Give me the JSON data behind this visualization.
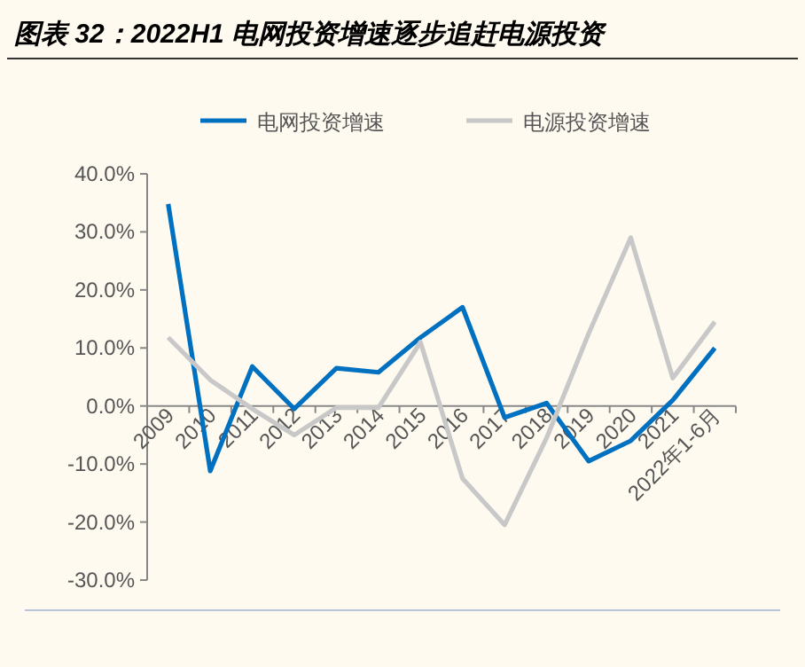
{
  "chart_data": {
    "type": "line",
    "title": "图表 32：2022H1 电网投资增速逐步追赶电源投资",
    "categories": [
      "2009",
      "2010",
      "2011",
      "2012",
      "2013",
      "2014",
      "2015",
      "2016",
      "2017",
      "2018",
      "2019",
      "2020",
      "2021",
      "2022年1-6月"
    ],
    "series": [
      {
        "name": "电网投资增速",
        "color": "#0070c0",
        "values": [
          34.8,
          -11.2,
          6.8,
          -0.5,
          6.5,
          5.8,
          11.8,
          17,
          -2,
          0.5,
          -9.5,
          -6,
          1,
          10
        ]
      },
      {
        "name": "电源投资增速",
        "color": "#c8c8c8",
        "values": [
          11.8,
          4.5,
          -0.5,
          -5,
          -0.3,
          -0.3,
          11,
          -12.5,
          -20.5,
          -5.5,
          12.5,
          29,
          4.8,
          14.5
        ]
      }
    ],
    "ylim": [
      -30,
      40
    ],
    "yticks": [
      {
        "value": -30,
        "label": "-30.0%"
      },
      {
        "value": -20,
        "label": "-20.0%"
      },
      {
        "value": -10,
        "label": "-10.0%"
      },
      {
        "value": 0,
        "label": "0.0%"
      },
      {
        "value": 10,
        "label": "10.0%"
      },
      {
        "value": 20,
        "label": "20.0%"
      },
      {
        "value": 30,
        "label": "30.0%"
      },
      {
        "value": 40,
        "label": "40.0%"
      }
    ],
    "grid": false,
    "legend": "top",
    "marker": "none",
    "line_style": "solid"
  }
}
